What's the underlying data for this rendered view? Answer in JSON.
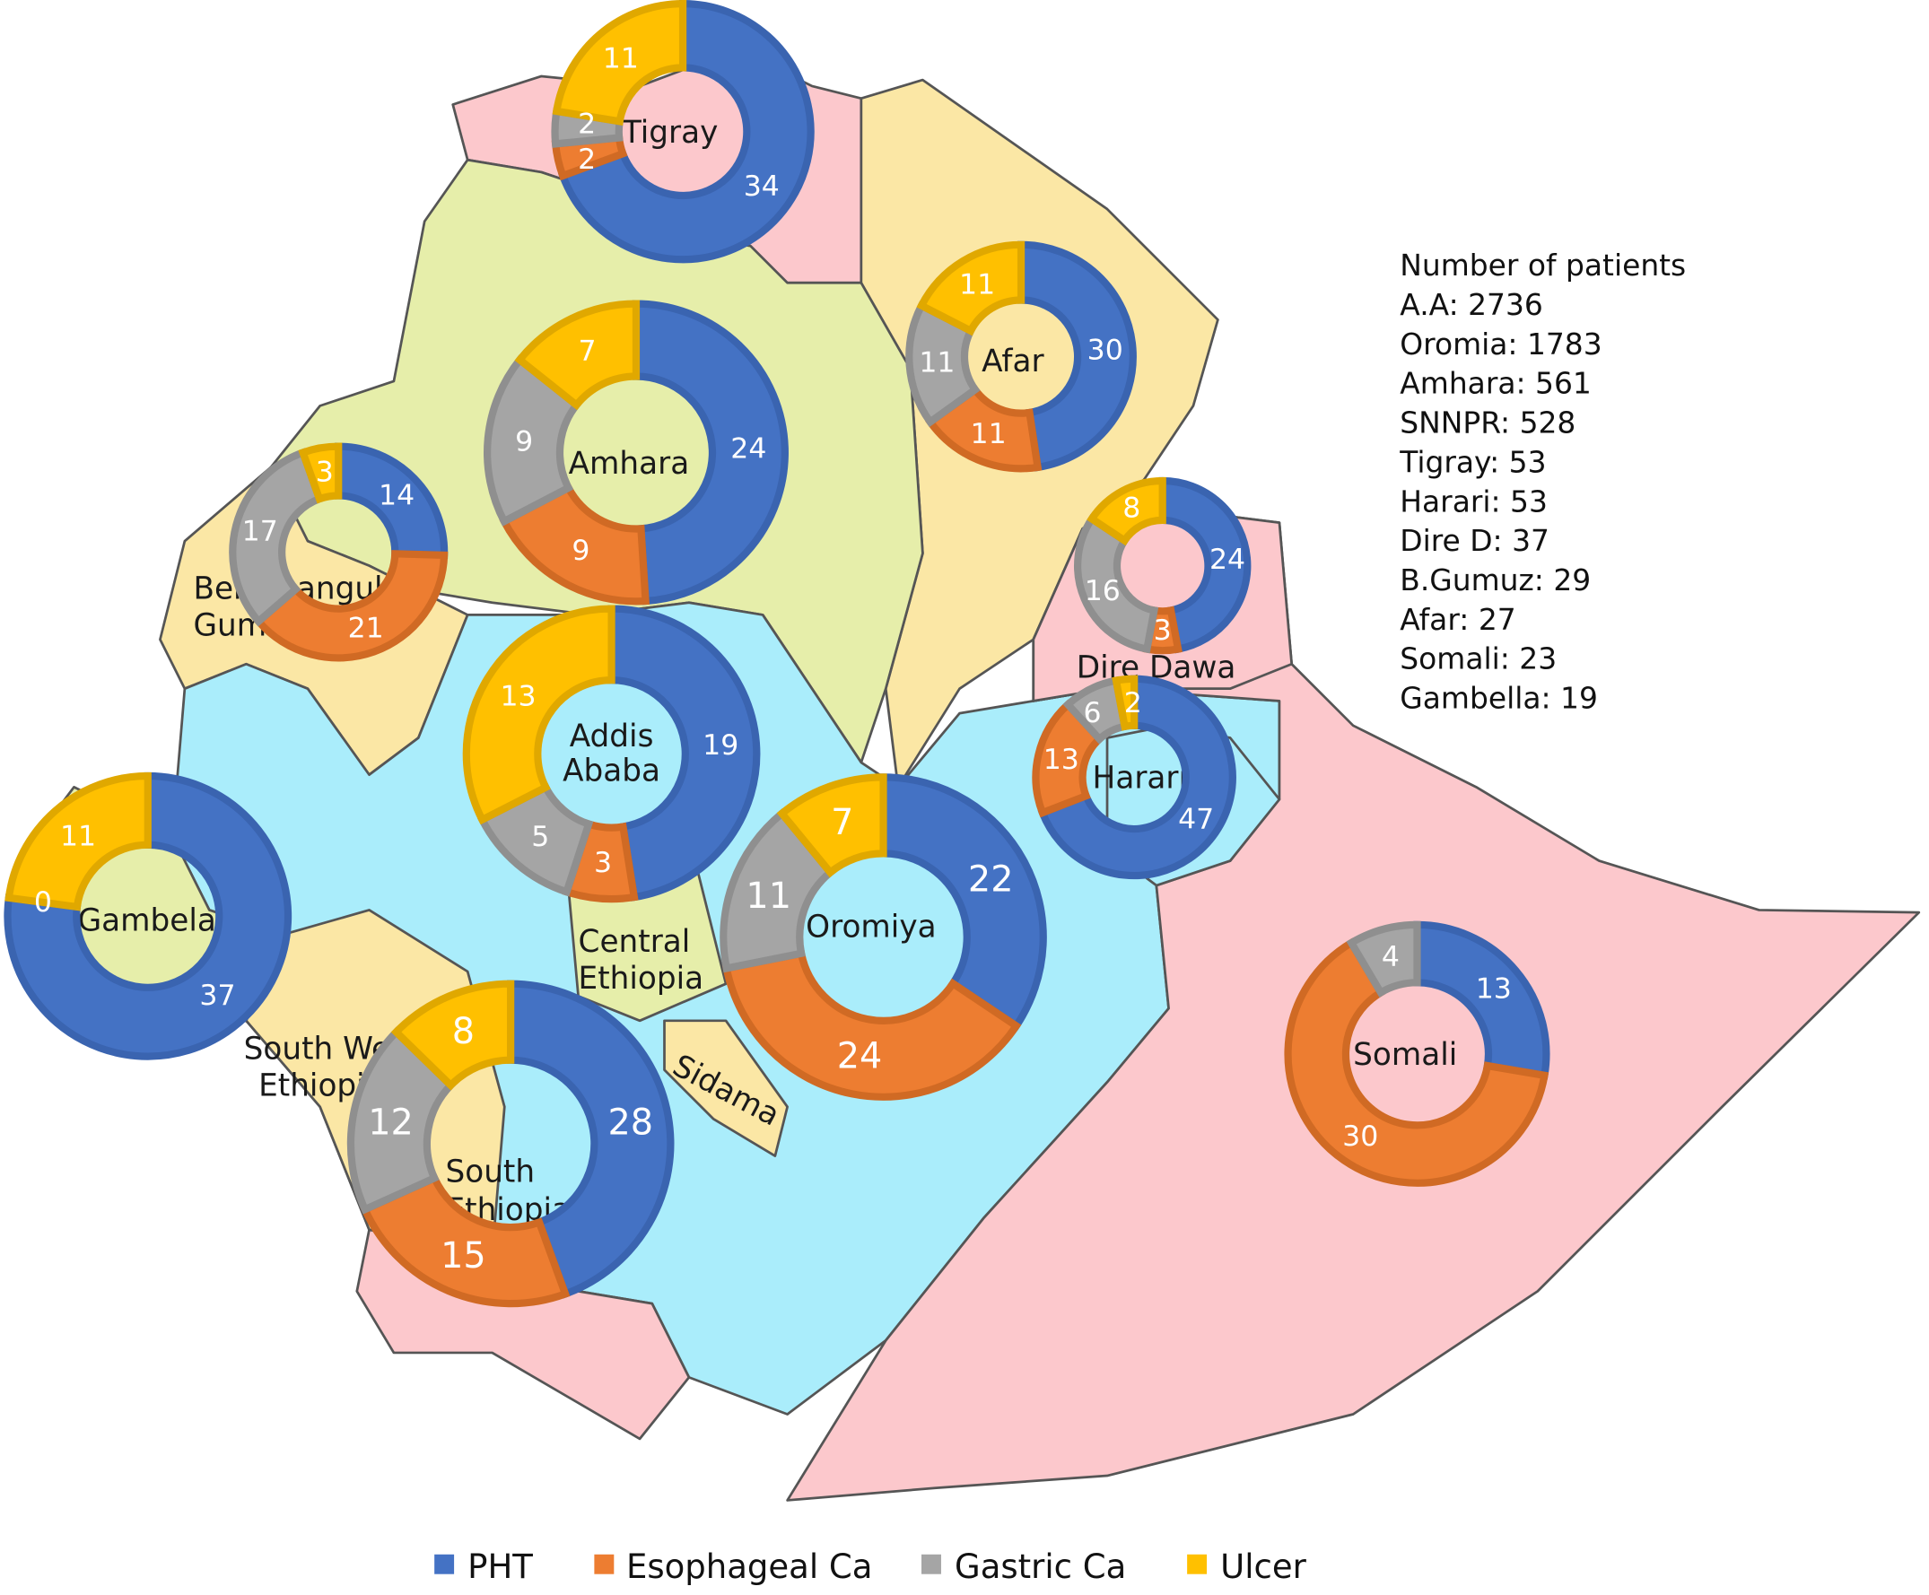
{
  "chart_data": {
    "type": "donut-map",
    "title": "",
    "series_names": [
      "PHT",
      "Esophageal Ca",
      "Gastric Ca",
      "Ulcer"
    ],
    "colors": {
      "PHT": "#4472c4",
      "Esophageal Ca": "#ed7d31",
      "Gastric Ca": "#a5a5a5",
      "Ulcer": "#ffc000"
    },
    "map_colors": {
      "pink": "#fcc8cc",
      "green": "#e6eeaa",
      "yellow": "#fbe7a5",
      "cyan": "#aaedfb"
    },
    "donuts": [
      {
        "region": "Tigray",
        "values": [
          34,
          2,
          2,
          11
        ],
        "labels": [
          "34",
          "2",
          "2",
          "11"
        ]
      },
      {
        "region": "Afar",
        "values": [
          30,
          11,
          11,
          11
        ],
        "labels": [
          "30",
          "11",
          "11",
          "11"
        ]
      },
      {
        "region": "Amhara",
        "values": [
          24,
          9,
          9,
          7
        ],
        "labels": [
          "24",
          "9",
          "9",
          "7"
        ]
      },
      {
        "region": "Benishangul Gumuz",
        "values": [
          14,
          21,
          17,
          3
        ],
        "labels": [
          "14",
          "21",
          "17",
          "3"
        ]
      },
      {
        "region": "Addis Ababa",
        "values": [
          19,
          3,
          5,
          13
        ],
        "labels": [
          "19",
          "3",
          "5",
          "13"
        ]
      },
      {
        "region": "Dire Dawa",
        "values": [
          24,
          3,
          16,
          8
        ],
        "labels": [
          "24",
          "3",
          "16",
          "8"
        ]
      },
      {
        "region": "Harari",
        "values": [
          47,
          13,
          6,
          2
        ],
        "labels": [
          "47",
          "13",
          "6",
          "2"
        ]
      },
      {
        "region": "Gambela",
        "values": [
          37,
          0,
          0,
          11
        ],
        "labels": [
          "37",
          "",
          "0",
          "11"
        ]
      },
      {
        "region": "Oromiya",
        "values": [
          22,
          24,
          11,
          7
        ],
        "labels": [
          "22",
          "24",
          "11",
          "7"
        ]
      },
      {
        "region": "Somali",
        "values": [
          13,
          30,
          4,
          0
        ],
        "labels": [
          "13",
          "30",
          "4",
          ""
        ]
      },
      {
        "region": "South Ethiopia",
        "values": [
          28,
          15,
          12,
          8
        ],
        "labels": [
          "28",
          "15",
          "12",
          "8"
        ]
      }
    ],
    "region_labels": {
      "tigray": "Tigray",
      "afar": "Afar",
      "amhara": "Amhara",
      "benishangul_1": "Benishangul",
      "benishangul_2": "Gumuz",
      "addis": "Addis Ababa",
      "dire": "Dire Dawa",
      "harari": "Harari",
      "gambela": "Gambela",
      "oromiya": "Oromiya",
      "central_1": "Central",
      "central_2": "Ethiopia",
      "sidama": "Sidama",
      "south_1": "South",
      "south_2": "Ethiopia",
      "sw_1": "South West",
      "sw_2": "Ethiopia",
      "somali": "Somali"
    },
    "patients_title": "Number of patients",
    "patients": [
      "A.A: 2736",
      "Oromia: 1783",
      "Amhara: 561",
      "SNNPR: 528",
      "Tigray: 53",
      "Harari: 53",
      "Dire D: 37",
      "B.Gumuz: 29",
      "Afar: 27",
      "Somali: 23",
      "Gambella: 19"
    ],
    "legend": [
      "PHT",
      "Esophageal Ca",
      "Gastric Ca",
      "Ulcer"
    ],
    "legend_placement": "bottom"
  }
}
